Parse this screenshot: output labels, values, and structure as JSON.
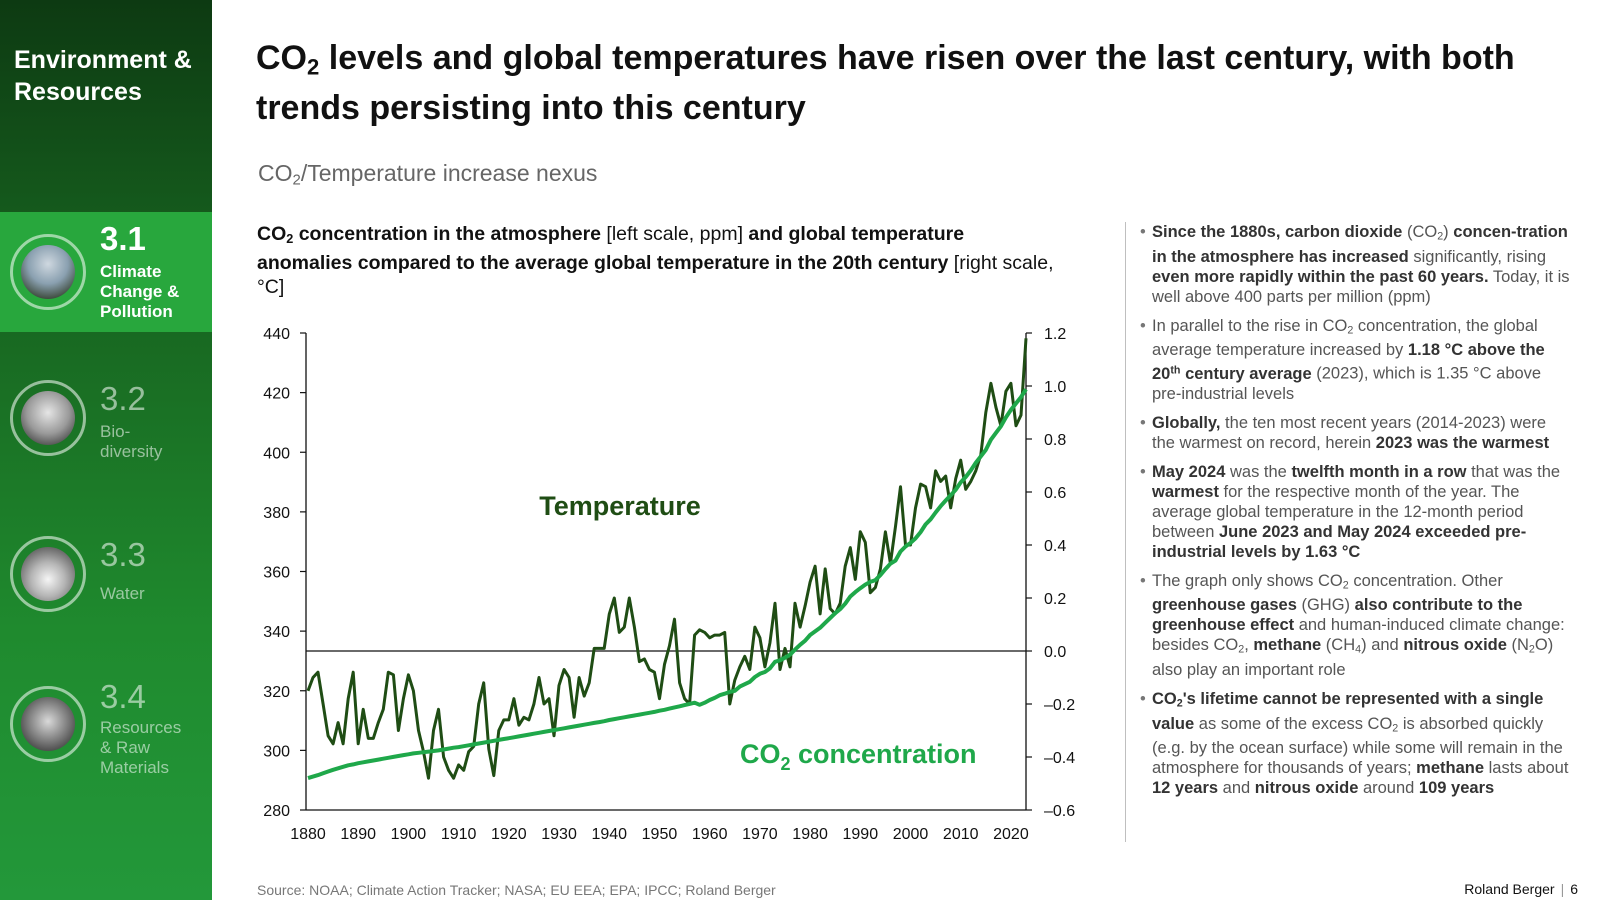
{
  "sidebar": {
    "section_title": "Environment & Resources",
    "items": [
      {
        "number": "3.1",
        "label": "Climate\nChange &\nPollution",
        "active": true
      },
      {
        "number": "3.2",
        "label": "Bio-\ndiversity",
        "active": false
      },
      {
        "number": "3.3",
        "label": "Water",
        "active": false
      },
      {
        "number": "3.4",
        "label": "Resources\n& Raw\nMaterials",
        "active": false
      }
    ]
  },
  "headline": {
    "pre": "CO",
    "sub": "2",
    "post": " levels and global temperatures have risen over the last century, with both trends persisting into this century"
  },
  "subheading": {
    "pre": "CO",
    "sub": "2",
    "post": "/Temperature increase nexus"
  },
  "chart_title": {
    "b1": "CO",
    "b1_sub": "2",
    "b1_post": " concentration in the atmosphere",
    "n1": " [left scale, ppm] ",
    "b2": "and global temperature anomalies compared to the average global temperature in the 20th century",
    "n2": " [right scale, °C]"
  },
  "chart_data": {
    "type": "line",
    "x": [
      1880,
      1881,
      1882,
      1883,
      1884,
      1885,
      1886,
      1887,
      1888,
      1889,
      1890,
      1891,
      1892,
      1893,
      1894,
      1895,
      1896,
      1897,
      1898,
      1899,
      1900,
      1901,
      1902,
      1903,
      1904,
      1905,
      1906,
      1907,
      1908,
      1909,
      1910,
      1911,
      1912,
      1913,
      1914,
      1915,
      1916,
      1917,
      1918,
      1919,
      1920,
      1921,
      1922,
      1923,
      1924,
      1925,
      1926,
      1927,
      1928,
      1929,
      1930,
      1931,
      1932,
      1933,
      1934,
      1935,
      1936,
      1937,
      1938,
      1939,
      1940,
      1941,
      1942,
      1943,
      1944,
      1945,
      1946,
      1947,
      1948,
      1949,
      1950,
      1951,
      1952,
      1953,
      1954,
      1955,
      1956,
      1957,
      1958,
      1959,
      1960,
      1961,
      1962,
      1963,
      1964,
      1965,
      1966,
      1967,
      1968,
      1969,
      1970,
      1971,
      1972,
      1973,
      1974,
      1975,
      1976,
      1977,
      1978,
      1979,
      1980,
      1981,
      1982,
      1983,
      1984,
      1985,
      1986,
      1987,
      1988,
      1989,
      1990,
      1991,
      1992,
      1993,
      1994,
      1995,
      1996,
      1997,
      1998,
      1999,
      2000,
      2001,
      2002,
      2003,
      2004,
      2005,
      2006,
      2007,
      2008,
      2009,
      2010,
      2011,
      2012,
      2013,
      2014,
      2015,
      2016,
      2017,
      2018,
      2019,
      2020,
      2021,
      2022,
      2023
    ],
    "series": [
      {
        "name": "Temperature",
        "axis": "right",
        "color": "#1f4d14",
        "values": [
          -0.15,
          -0.1,
          -0.08,
          -0.2,
          -0.32,
          -0.35,
          -0.27,
          -0.35,
          -0.18,
          -0.08,
          -0.35,
          -0.22,
          -0.33,
          -0.33,
          -0.27,
          -0.22,
          -0.08,
          -0.09,
          -0.3,
          -0.18,
          -0.09,
          -0.15,
          -0.3,
          -0.38,
          -0.48,
          -0.3,
          -0.22,
          -0.4,
          -0.45,
          -0.48,
          -0.43,
          -0.45,
          -0.38,
          -0.36,
          -0.2,
          -0.12,
          -0.37,
          -0.47,
          -0.3,
          -0.26,
          -0.26,
          -0.18,
          -0.28,
          -0.25,
          -0.26,
          -0.2,
          -0.1,
          -0.2,
          -0.18,
          -0.32,
          -0.13,
          -0.07,
          -0.1,
          -0.25,
          -0.1,
          -0.17,
          -0.12,
          0.01,
          0.01,
          0.01,
          0.14,
          0.2,
          0.07,
          0.09,
          0.2,
          0.09,
          -0.04,
          -0.03,
          -0.07,
          -0.08,
          -0.18,
          -0.05,
          0.02,
          0.12,
          -0.12,
          -0.18,
          -0.2,
          0.06,
          0.08,
          0.07,
          0.05,
          0.06,
          0.06,
          0.07,
          -0.2,
          -0.11,
          -0.06,
          -0.02,
          -0.07,
          0.09,
          0.05,
          -0.06,
          0.03,
          0.18,
          -0.07,
          0.01,
          -0.06,
          0.18,
          0.09,
          0.17,
          0.26,
          0.32,
          0.14,
          0.31,
          0.16,
          0.14,
          0.18,
          0.32,
          0.39,
          0.27,
          0.45,
          0.41,
          0.22,
          0.24,
          0.31,
          0.45,
          0.33,
          0.47,
          0.62,
          0.4,
          0.4,
          0.54,
          0.63,
          0.62,
          0.54,
          0.68,
          0.64,
          0.66,
          0.54,
          0.65,
          0.72,
          0.61,
          0.64,
          0.68,
          0.74,
          0.9,
          1.01,
          0.92,
          0.85,
          0.98,
          1.01,
          0.85,
          0.89,
          1.18
        ]
      },
      {
        "name": "CO2 concentration",
        "axis": "left",
        "color": "#1fa84a",
        "values": [
          290.7,
          291.2,
          291.7,
          292.3,
          292.9,
          293.5,
          294.0,
          294.5,
          295.0,
          295.3,
          295.7,
          296.0,
          296.3,
          296.6,
          296.9,
          297.2,
          297.5,
          297.8,
          298.1,
          298.4,
          298.7,
          299.0,
          299.2,
          299.4,
          299.6,
          299.8,
          300.0,
          300.3,
          300.6,
          300.9,
          301.1,
          301.4,
          301.7,
          302.0,
          302.3,
          302.6,
          302.9,
          303.2,
          303.5,
          303.8,
          304.1,
          304.4,
          304.7,
          305.0,
          305.3,
          305.6,
          305.9,
          306.2,
          306.5,
          306.8,
          307.1,
          307.4,
          307.7,
          308.0,
          308.3,
          308.6,
          308.9,
          309.2,
          309.5,
          309.8,
          310.2,
          310.5,
          310.8,
          311.1,
          311.4,
          311.7,
          312.0,
          312.3,
          312.6,
          312.9,
          313.3,
          313.6,
          314.0,
          314.4,
          314.8,
          315.2,
          315.6,
          316.0,
          315.3,
          316.0,
          316.9,
          317.6,
          318.5,
          319.0,
          319.6,
          320.0,
          321.4,
          322.2,
          323.0,
          324.6,
          325.7,
          326.3,
          327.5,
          329.7,
          330.2,
          331.1,
          332.1,
          333.8,
          335.4,
          336.8,
          338.7,
          339.9,
          341.1,
          342.8,
          344.4,
          346.0,
          347.4,
          349.2,
          351.6,
          353.1,
          354.4,
          355.6,
          356.5,
          357.1,
          358.8,
          360.8,
          362.6,
          363.7,
          366.7,
          368.4,
          369.6,
          371.1,
          373.2,
          375.8,
          377.5,
          379.8,
          381.9,
          383.8,
          385.6,
          387.4,
          389.9,
          391.7,
          393.9,
          396.5,
          398.6,
          400.8,
          404.2,
          406.5,
          408.7,
          411.7,
          414.2,
          416.4,
          418.5,
          421.1
        ]
      }
    ],
    "left_axis": {
      "ylim": [
        280,
        440
      ],
      "ticks": [
        280,
        300,
        320,
        340,
        360,
        380,
        400,
        420,
        440
      ],
      "unit": "ppm"
    },
    "right_axis": {
      "ylim": [
        -0.6,
        1.2
      ],
      "ticks": [
        "-0.6",
        "-0.4",
        "-0.2",
        "0.0",
        "0.2",
        "0.4",
        "0.6",
        "0.8",
        "1.0",
        "1.2"
      ],
      "unit": "°C"
    },
    "x_ticks": [
      1880,
      1890,
      1900,
      1910,
      1920,
      1930,
      1940,
      1950,
      1960,
      1970,
      1980,
      1990,
      2000,
      2010,
      2020
    ],
    "labels": {
      "temperature": "Temperature",
      "co2_pre": "CO",
      "co2_sub": "2",
      "co2_post": " concentration"
    },
    "zero_line": true,
    "grid": false
  },
  "notes": [
    "<b>Since the 1880s, carbon dioxide</b> (CO<sub class='s'>2</sub>) <b>concen-tration in the atmosphere has increased</b> significantly, rising <b>even more rapidly within the past 60 years.</b> Today, it is well above 400 parts per million (ppm)",
    "In parallel to the rise in CO<sub class='s'>2</sub> concentration, the global average temperature increased by <b>1.18 °C above the 20<sup class='s'>th</sup> century average</b> (2023), which is 1.35 °C above pre-industrial levels",
    "<b>Globally,</b> the ten most recent years (2014-2023) were the warmest on record, herein <b>2023 was the warmest</b>",
    "<b>May 2024</b> was the <b>twelfth month in a row</b> that was the <b>warmest</b> for the respective month of the year. The average global temperature in the 12-month period between <b>June 2023 and May 2024 exceeded pre-industrial levels by 1.63 °C</b>",
    "The graph only shows CO<sub class='s'>2</sub> concentration. Other <b>greenhouse gases</b> (GHG) <b>also contribute to the greenhouse effect</b> and human-induced climate change: besides CO<sub class='s'>2</sub>, <b>methane</b> (CH<sub class='s'>4</sub>) and <b>nitrous oxide</b> (N<sub class='s'>2</sub>O) also play an important role",
    "<b>CO<sub class='s'>2</sub>'s lifetime cannot be represented with a single value</b> as some of the excess CO<sub class='s'>2</sub> is absorbed quickly (e.g. by the ocean surface) while some will remain in the atmosphere for thousands of years; <b>methane</b> lasts about <b>12 years</b> and <b>nitrous oxide</b> around <b>109 years</b>"
  ],
  "source": "Source: NOAA; Climate Action Tracker; NASA; EU EEA; EPA; IPCC; Roland Berger",
  "brand": {
    "name": "Roland Berger",
    "page": "6"
  }
}
